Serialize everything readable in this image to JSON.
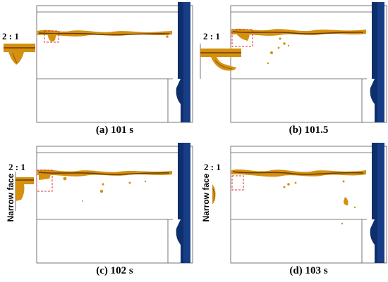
{
  "figure": {
    "panels": [
      {
        "caption": "(a) 101 s",
        "ratio": "2 : 1",
        "side_label": ""
      },
      {
        "caption": "(b) 101.5",
        "ratio": "2 : 1",
        "side_label": ""
      },
      {
        "caption": "(c) 102 s",
        "ratio": "2 : 1",
        "side_label": "Narrow  face"
      },
      {
        "caption": "(d) 103 s",
        "ratio": "2 : 1",
        "side_label": "Narrow  face"
      }
    ],
    "colors": {
      "slag": "#d4900f",
      "slag_dark": "#6b3d06",
      "steel_wall": "#0f2f6b",
      "outline": "#555555",
      "zoom_box": "#e0312b"
    }
  }
}
